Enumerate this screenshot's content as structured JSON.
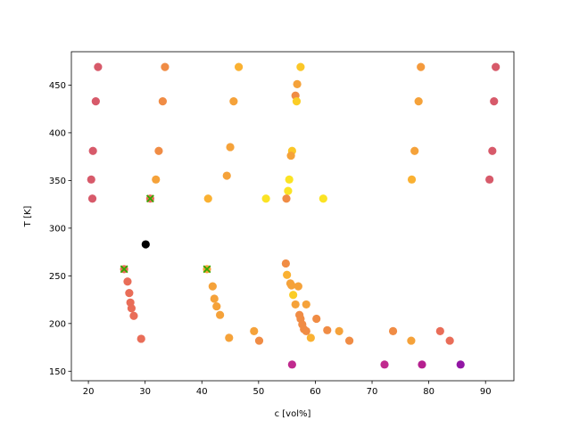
{
  "chart_data": {
    "type": "scatter",
    "xlabel": "c [vol%]",
    "ylabel": "T [K]",
    "xlim": [
      17,
      95
    ],
    "ylim": [
      140,
      485
    ],
    "xticks": [
      20,
      30,
      40,
      50,
      60,
      70,
      80,
      90
    ],
    "yticks": [
      150,
      200,
      250,
      300,
      350,
      400,
      450
    ],
    "grid": false,
    "points": [
      {
        "x": 21.7,
        "y": 469,
        "color": "#d75a6a"
      },
      {
        "x": 33.5,
        "y": 469,
        "color": "#f08c45"
      },
      {
        "x": 46.5,
        "y": 469,
        "color": "#fab132"
      },
      {
        "x": 57.4,
        "y": 469,
        "color": "#fbc728"
      },
      {
        "x": 78.6,
        "y": 469,
        "color": "#f49a3d"
      },
      {
        "x": 91.8,
        "y": 469,
        "color": "#d75a6a"
      },
      {
        "x": 56.8,
        "y": 451,
        "color": "#f5a23a"
      },
      {
        "x": 56.5,
        "y": 439,
        "color": "#f08c45"
      },
      {
        "x": 21.3,
        "y": 433,
        "color": "#d75a6a"
      },
      {
        "x": 33.1,
        "y": 433,
        "color": "#f08c45"
      },
      {
        "x": 45.6,
        "y": 433,
        "color": "#f5a23a"
      },
      {
        "x": 56.7,
        "y": 433,
        "color": "#fbcd26"
      },
      {
        "x": 78.2,
        "y": 433,
        "color": "#f5a23a"
      },
      {
        "x": 91.5,
        "y": 433,
        "color": "#d75a6a"
      },
      {
        "x": 45.0,
        "y": 385,
        "color": "#f5a23a"
      },
      {
        "x": 20.8,
        "y": 381,
        "color": "#d75a6a"
      },
      {
        "x": 32.4,
        "y": 381,
        "color": "#f08c45"
      },
      {
        "x": 55.9,
        "y": 381,
        "color": "#fbc728"
      },
      {
        "x": 77.5,
        "y": 381,
        "color": "#f5a23a"
      },
      {
        "x": 91.2,
        "y": 381,
        "color": "#d75a6a"
      },
      {
        "x": 55.7,
        "y": 376,
        "color": "#f5a23a"
      },
      {
        "x": 44.4,
        "y": 355,
        "color": "#f5a23a"
      },
      {
        "x": 20.5,
        "y": 351,
        "color": "#d75a6a"
      },
      {
        "x": 31.9,
        "y": 351,
        "color": "#f5a23a"
      },
      {
        "x": 55.4,
        "y": 351,
        "color": "#fbe324"
      },
      {
        "x": 77.0,
        "y": 351,
        "color": "#fab132"
      },
      {
        "x": 90.7,
        "y": 351,
        "color": "#d75a6a"
      },
      {
        "x": 55.2,
        "y": 339,
        "color": "#fbe324"
      },
      {
        "x": 20.7,
        "y": 331,
        "color": "#d75a6a"
      },
      {
        "x": 41.1,
        "y": 331,
        "color": "#fab132"
      },
      {
        "x": 51.3,
        "y": 331,
        "color": "#fbe324"
      },
      {
        "x": 54.9,
        "y": 331,
        "color": "#f08c45"
      },
      {
        "x": 61.4,
        "y": 331,
        "color": "#fbe324"
      },
      {
        "x": 30.1,
        "y": 283,
        "color": "#000000"
      },
      {
        "x": 54.8,
        "y": 263,
        "color": "#f08c45"
      },
      {
        "x": 55.0,
        "y": 251,
        "color": "#fab132"
      },
      {
        "x": 55.6,
        "y": 242,
        "color": "#f5a23a"
      },
      {
        "x": 57.0,
        "y": 239,
        "color": "#f5a23a"
      },
      {
        "x": 55.8,
        "y": 240,
        "color": "#f5a23a"
      },
      {
        "x": 41.9,
        "y": 239,
        "color": "#f5a23a"
      },
      {
        "x": 26.9,
        "y": 244,
        "color": "#e96d58"
      },
      {
        "x": 27.2,
        "y": 232,
        "color": "#e96d58"
      },
      {
        "x": 56.1,
        "y": 230,
        "color": "#fbcd26"
      },
      {
        "x": 42.2,
        "y": 226,
        "color": "#f5a23a"
      },
      {
        "x": 27.4,
        "y": 222,
        "color": "#e96d58"
      },
      {
        "x": 56.5,
        "y": 220,
        "color": "#f5a23a"
      },
      {
        "x": 58.4,
        "y": 220,
        "color": "#f5a23a"
      },
      {
        "x": 42.6,
        "y": 218,
        "color": "#f5a23a"
      },
      {
        "x": 27.6,
        "y": 216,
        "color": "#e96d58"
      },
      {
        "x": 28.0,
        "y": 208,
        "color": "#e96d58"
      },
      {
        "x": 43.2,
        "y": 209,
        "color": "#f5a23a"
      },
      {
        "x": 57.2,
        "y": 209,
        "color": "#f08c45"
      },
      {
        "x": 57.4,
        "y": 205,
        "color": "#f08c45"
      },
      {
        "x": 60.2,
        "y": 205,
        "color": "#f08c45"
      },
      {
        "x": 57.7,
        "y": 199,
        "color": "#f08c45"
      },
      {
        "x": 58.0,
        "y": 194,
        "color": "#f08c45"
      },
      {
        "x": 58.4,
        "y": 192,
        "color": "#f08c45"
      },
      {
        "x": 62.1,
        "y": 193,
        "color": "#f08c45"
      },
      {
        "x": 64.2,
        "y": 192,
        "color": "#f5a23a"
      },
      {
        "x": 49.2,
        "y": 192,
        "color": "#f5a23a"
      },
      {
        "x": 73.7,
        "y": 192,
        "color": "#f08c45"
      },
      {
        "x": 82.0,
        "y": 192,
        "color": "#e96d58"
      },
      {
        "x": 29.3,
        "y": 184,
        "color": "#e96d58"
      },
      {
        "x": 44.8,
        "y": 185,
        "color": "#f5a23a"
      },
      {
        "x": 59.2,
        "y": 185,
        "color": "#fab132"
      },
      {
        "x": 50.1,
        "y": 182,
        "color": "#f08c45"
      },
      {
        "x": 66.0,
        "y": 182,
        "color": "#f08c45"
      },
      {
        "x": 76.9,
        "y": 182,
        "color": "#f5a23a"
      },
      {
        "x": 83.7,
        "y": 182,
        "color": "#e96d58"
      },
      {
        "x": 55.9,
        "y": 157,
        "color": "#c02a8e"
      },
      {
        "x": 72.2,
        "y": 157,
        "color": "#c02a8e"
      },
      {
        "x": 78.8,
        "y": 157,
        "color": "#b5208f"
      },
      {
        "x": 85.6,
        "y": 157,
        "color": "#9216a4"
      }
    ],
    "highlighted_points": [
      {
        "x": 26.3,
        "y": 257,
        "color": "#e96d58"
      },
      {
        "x": 30.9,
        "y": 331,
        "color": "#e96d58"
      },
      {
        "x": 40.9,
        "y": 257,
        "color": "#f5a23a"
      }
    ],
    "marker_x_color": "#32a800"
  }
}
